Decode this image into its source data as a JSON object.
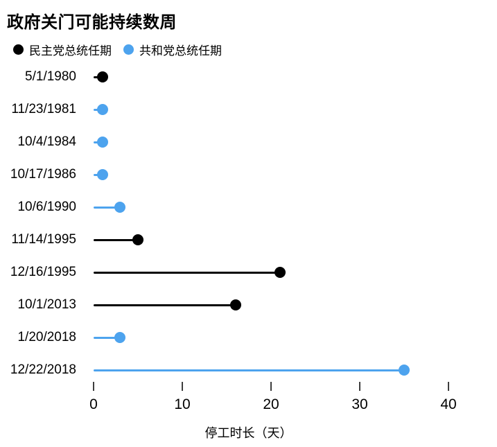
{
  "title": "政府关门可能持续数周",
  "legend": {
    "items": [
      {
        "label": "民主党总统任期",
        "party": "dem"
      },
      {
        "label": "共和党总统任期",
        "party": "rep"
      }
    ]
  },
  "colors": {
    "dem": "#000000",
    "rep": "#4da3ee"
  },
  "chart_data": {
    "type": "bar",
    "style": "horizontal-lollipop",
    "title": "政府关门可能持续数周",
    "xlabel": "停工时长（天）",
    "ylabel": "",
    "xlim": [
      0,
      45
    ],
    "xticks": [
      0,
      10,
      20,
      30,
      40
    ],
    "grid": false,
    "legend_position": "top-left",
    "series": [
      {
        "name": "民主党总统任期",
        "party": "dem",
        "color": "#000000"
      },
      {
        "name": "共和党总统任期",
        "party": "rep",
        "color": "#4da3ee"
      }
    ],
    "categories": [
      "5/1/1980",
      "11/23/1981",
      "10/4/1984",
      "10/17/1986",
      "10/6/1990",
      "11/14/1995",
      "12/16/1995",
      "10/1/2013",
      "1/20/2018",
      "12/22/2018"
    ],
    "points": [
      {
        "date": "5/1/1980",
        "days": 1,
        "party": "dem"
      },
      {
        "date": "11/23/1981",
        "days": 1,
        "party": "rep"
      },
      {
        "date": "10/4/1984",
        "days": 1,
        "party": "rep"
      },
      {
        "date": "10/17/1986",
        "days": 1,
        "party": "rep"
      },
      {
        "date": "10/6/1990",
        "days": 3,
        "party": "rep"
      },
      {
        "date": "11/14/1995",
        "days": 5,
        "party": "dem"
      },
      {
        "date": "12/16/1995",
        "days": 21,
        "party": "dem"
      },
      {
        "date": "10/1/2013",
        "days": 16,
        "party": "dem"
      },
      {
        "date": "1/20/2018",
        "days": 3,
        "party": "rep"
      },
      {
        "date": "12/22/2018",
        "days": 35,
        "party": "rep"
      }
    ]
  }
}
